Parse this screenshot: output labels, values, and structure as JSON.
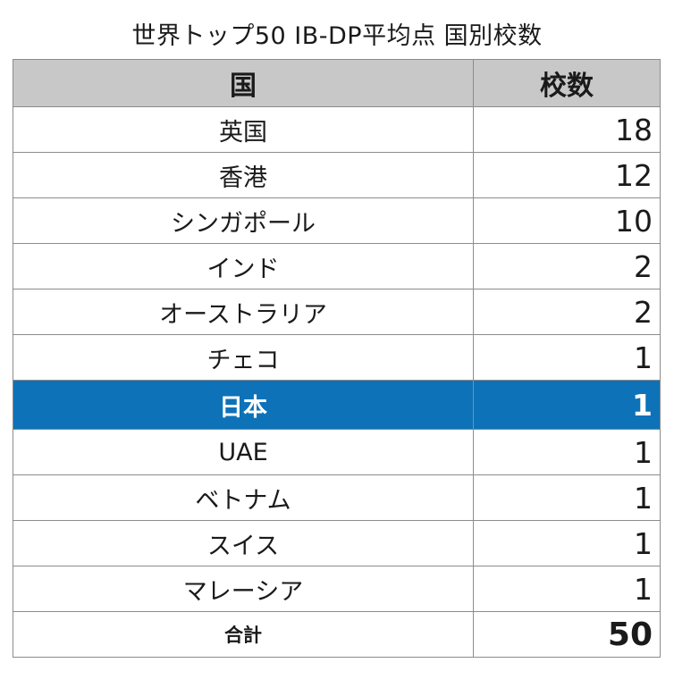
{
  "chart_data": {
    "type": "table",
    "title": "世界トップ50 IB-DP平均点 国別校数",
    "columns": [
      "国",
      "校数"
    ],
    "rows": [
      {
        "country": "英国",
        "count": 18
      },
      {
        "country": "香港",
        "count": 12
      },
      {
        "country": "シンガポール",
        "count": 10
      },
      {
        "country": "インド",
        "count": 2
      },
      {
        "country": "オーストラリア",
        "count": 2
      },
      {
        "country": "チェコ",
        "count": 1
      },
      {
        "country": "日本",
        "count": 1
      },
      {
        "country": "UAE",
        "count": 1
      },
      {
        "country": "ベトナム",
        "count": 1
      },
      {
        "country": "スイス",
        "count": 1
      },
      {
        "country": "マレーシア",
        "count": 1
      }
    ],
    "highlighted_row": "日本",
    "highlight_color": "#0d72b8",
    "header_color": "#c8c8c8",
    "total": {
      "label": "合計",
      "count": 50
    }
  }
}
